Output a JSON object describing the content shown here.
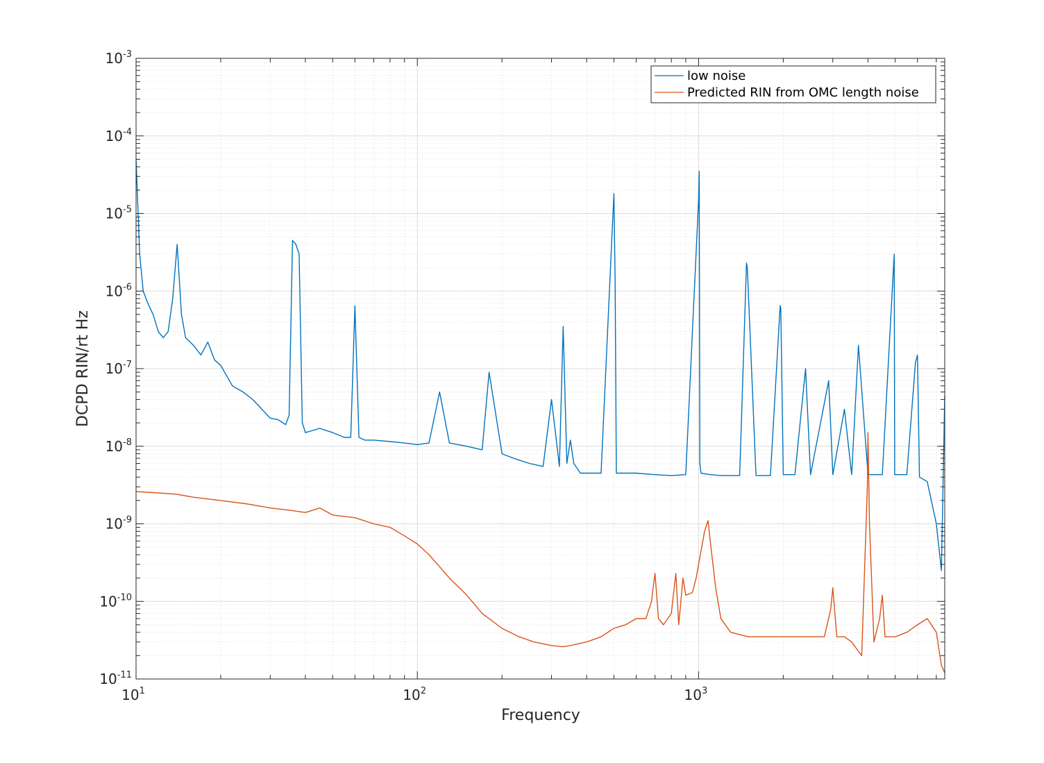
{
  "chart_data": {
    "type": "line",
    "xlabel": "Frequency",
    "ylabel": "DCPD RIN/rt Hz",
    "xscale": "log",
    "yscale": "log",
    "xlim": [
      10,
      7500
    ],
    "ylim": [
      1e-11,
      0.001
    ],
    "grid": true,
    "legend_placement": "top-right",
    "x_ticks": [
      {
        "base": "10",
        "exp": "1"
      },
      {
        "base": "10",
        "exp": "2"
      },
      {
        "base": "10",
        "exp": "3"
      }
    ],
    "y_ticks": [
      {
        "base": "10",
        "exp": "-3"
      },
      {
        "base": "10",
        "exp": "-4"
      },
      {
        "base": "10",
        "exp": "-5"
      },
      {
        "base": "10",
        "exp": "-6"
      },
      {
        "base": "10",
        "exp": "-7"
      },
      {
        "base": "10",
        "exp": "-8"
      },
      {
        "base": "10",
        "exp": "-9"
      },
      {
        "base": "10",
        "exp": "-10"
      },
      {
        "base": "10",
        "exp": "-11"
      }
    ],
    "series": [
      {
        "name": "low noise",
        "color": "#0072BD",
        "x": [
          10,
          10.3,
          10.6,
          11,
          11.5,
          12,
          12.5,
          13,
          13.5,
          14,
          14.5,
          15,
          16,
          17,
          18,
          19,
          20,
          22,
          24,
          26,
          28,
          30,
          32,
          34,
          35,
          36,
          37,
          38,
          39,
          40,
          45,
          50,
          55,
          58,
          60,
          62,
          65,
          70,
          80,
          90,
          100,
          110,
          120,
          130,
          150,
          170,
          180,
          200,
          220,
          250,
          280,
          300,
          320,
          330,
          340,
          350,
          360,
          380,
          400,
          450,
          500,
          505,
          510,
          600,
          700,
          800,
          900,
          1000,
          1005,
          1010,
          1020,
          1100,
          1200,
          1400,
          1480,
          1490,
          1600,
          1800,
          1950,
          1960,
          2000,
          2100,
          2200,
          2400,
          2500,
          2900,
          3000,
          3300,
          3500,
          3700,
          4000,
          4500,
          4960,
          4980,
          5000,
          5500,
          5900,
          6000,
          6100,
          6500,
          7000,
          7300,
          7500
        ],
        "values": [
          5e-05,
          3e-06,
          1e-06,
          7e-07,
          5e-07,
          3e-07,
          2.5e-07,
          3e-07,
          8e-07,
          4e-06,
          5e-07,
          2.5e-07,
          2e-07,
          1.5e-07,
          2.2e-07,
          1.3e-07,
          1.1e-07,
          6e-08,
          5e-08,
          4e-08,
          3e-08,
          2.3e-08,
          2.2e-08,
          1.9e-08,
          2.5e-08,
          4.5e-06,
          4e-06,
          3e-06,
          2e-08,
          1.5e-08,
          1.7e-08,
          1.5e-08,
          1.3e-08,
          1.3e-08,
          6.5e-07,
          1.3e-08,
          1.2e-08,
          1.2e-08,
          1.15e-08,
          1.1e-08,
          1.05e-08,
          1.1e-08,
          5e-08,
          1.1e-08,
          1e-08,
          9e-09,
          9e-08,
          8e-09,
          7e-09,
          6e-09,
          5.5e-09,
          4e-08,
          5.5e-09,
          3.5e-07,
          6e-09,
          1.2e-08,
          6e-09,
          4.5e-09,
          4.5e-09,
          4.5e-09,
          1.8e-05,
          1.3e-06,
          4.5e-09,
          4.5e-09,
          4.3e-09,
          4.2e-09,
          4.3e-09,
          1.5e-05,
          3.5e-05,
          6e-09,
          4.5e-09,
          4.3e-09,
          4.2e-09,
          4.2e-09,
          2.3e-06,
          2e-06,
          4.2e-09,
          4.2e-09,
          6.5e-07,
          6e-07,
          4.3e-09,
          4.3e-09,
          4.3e-09,
          1e-07,
          4.3e-09,
          7e-08,
          4.3e-09,
          3e-08,
          4.3e-09,
          2e-07,
          4.3e-09,
          4.3e-09,
          3e-06,
          4.3e-09,
          4.3e-09,
          4.3e-09,
          1.2e-07,
          1.5e-07,
          4e-09,
          3.5e-09,
          1e-09,
          2.5e-10,
          4.5e-08
        ]
      },
      {
        "name": "Predicted RIN from OMC length noise",
        "color": "#D95319",
        "x": [
          10,
          12,
          14,
          16,
          20,
          25,
          30,
          35,
          40,
          45,
          50,
          60,
          70,
          80,
          90,
          100,
          110,
          120,
          130,
          150,
          170,
          200,
          230,
          260,
          300,
          330,
          350,
          400,
          450,
          500,
          550,
          600,
          650,
          680,
          700,
          720,
          750,
          800,
          830,
          850,
          880,
          900,
          950,
          980,
          1000,
          1050,
          1080,
          1100,
          1150,
          1200,
          1300,
          1500,
          1700,
          2000,
          2300,
          2500,
          2800,
          2950,
          3000,
          3100,
          3300,
          3500,
          3800,
          3980,
          4000,
          4050,
          4200,
          4400,
          4500,
          4600,
          5000,
          5500,
          6000,
          6500,
          7000,
          7300,
          7500
        ],
        "values": [
          2.6e-09,
          2.5e-09,
          2.4e-09,
          2.2e-09,
          2e-09,
          1.8e-09,
          1.6e-09,
          1.5e-09,
          1.4e-09,
          1.6e-09,
          1.3e-09,
          1.2e-09,
          1e-09,
          9e-10,
          7e-10,
          5.5e-10,
          4e-10,
          2.8e-10,
          2e-10,
          1.2e-10,
          7e-11,
          4.5e-11,
          3.5e-11,
          3e-11,
          2.7e-11,
          2.6e-11,
          2.7e-11,
          3e-11,
          3.5e-11,
          4.5e-11,
          5e-11,
          6e-11,
          6e-11,
          1e-10,
          2.3e-10,
          6e-11,
          5e-11,
          7e-11,
          2.3e-10,
          5e-11,
          2e-10,
          1.2e-10,
          1.3e-10,
          2e-10,
          3e-10,
          8e-10,
          1.1e-09,
          6e-10,
          1.5e-10,
          6e-11,
          4e-11,
          3.5e-11,
          3.5e-11,
          3.5e-11,
          3.5e-11,
          3.5e-11,
          3.5e-11,
          8e-11,
          1.5e-10,
          3.5e-11,
          3.5e-11,
          3e-11,
          2e-11,
          3e-09,
          1.5e-08,
          1e-09,
          3e-11,
          6e-11,
          1.2e-10,
          3.5e-11,
          3.5e-11,
          4e-11,
          5e-11,
          6e-11,
          4e-11,
          1.5e-11,
          1.2e-11
        ]
      }
    ]
  }
}
